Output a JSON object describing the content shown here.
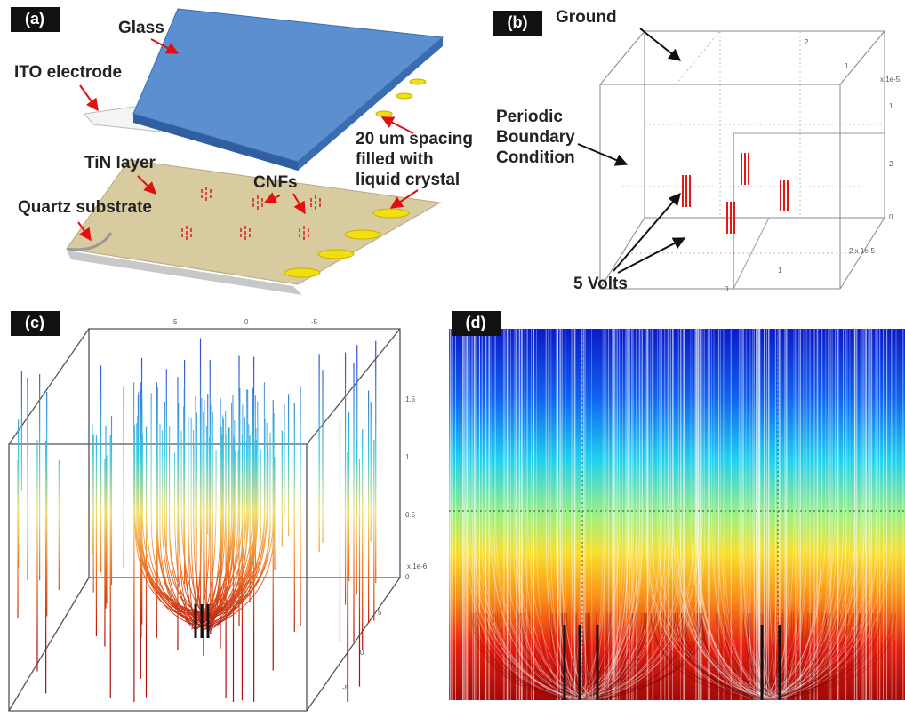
{
  "panel_a": {
    "label": "(a)",
    "glass": "Glass",
    "ito": "ITO electrode",
    "spacing": [
      "20 um spacing",
      "filled with",
      "liquid crystal"
    ],
    "tin": "TiN layer",
    "cnfs": "CNFs",
    "quartz": "Quartz substrate"
  },
  "panel_b": {
    "label": "(b)",
    "ground": "Ground",
    "periodic": [
      "Periodic",
      "Boundary",
      "Condition"
    ],
    "volts": "5 Volts",
    "ticks": [
      "x 1e-5",
      "2 x 1e-5",
      "0",
      "1",
      "2",
      "1",
      "2",
      "0",
      "1"
    ]
  },
  "panel_c": {
    "label": "(c)",
    "ticks": [
      "x 1e-6",
      "0",
      "0.5",
      "1",
      "1.5",
      "5",
      "0",
      "-5",
      "5",
      "0",
      "-5"
    ]
  },
  "panel_d": {
    "label": "(d)"
  }
}
